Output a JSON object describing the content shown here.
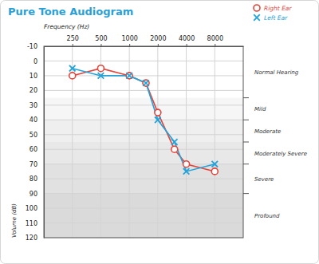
{
  "chart_data": {
    "type": "line",
    "title": "Pure Tone Audiogram",
    "x_label": "Frequency (Hz)",
    "y_label": "Volume (dB)",
    "x": [
      250,
      500,
      1000,
      1500,
      2000,
      3000,
      4000,
      8000
    ],
    "series": [
      {
        "name": "Right Ear",
        "color": "#e2453c",
        "marker": "circle",
        "values": [
          10,
          5,
          10,
          15,
          35,
          60,
          70,
          75
        ]
      },
      {
        "name": "Left Ear",
        "color": "#24a3d9",
        "marker": "x",
        "values": [
          5,
          10,
          10,
          15,
          40,
          55,
          75,
          70
        ]
      }
    ],
    "xlim": [
      125,
      16000
    ],
    "xticks": [
      250,
      500,
      1000,
      2000,
      4000,
      8000
    ],
    "ylim": [
      -10,
      120
    ],
    "yticks": [
      -10,
      0,
      10,
      20,
      30,
      40,
      50,
      60,
      70,
      80,
      90,
      100,
      110,
      120
    ],
    "log": "x",
    "grid": true,
    "legend": "top-right",
    "bands": [
      {
        "label": "Normal Hearing",
        "from": -10,
        "to": 25
      },
      {
        "label": "Mild",
        "from": 25,
        "to": 40
      },
      {
        "label": "Moderate",
        "from": 40,
        "to": 55
      },
      {
        "label": "Moderately Severe",
        "from": 55,
        "to": 70
      },
      {
        "label": "Severe",
        "from": 70,
        "to": 90
      },
      {
        "label": "Profound",
        "from": 90,
        "to": 120
      }
    ]
  }
}
